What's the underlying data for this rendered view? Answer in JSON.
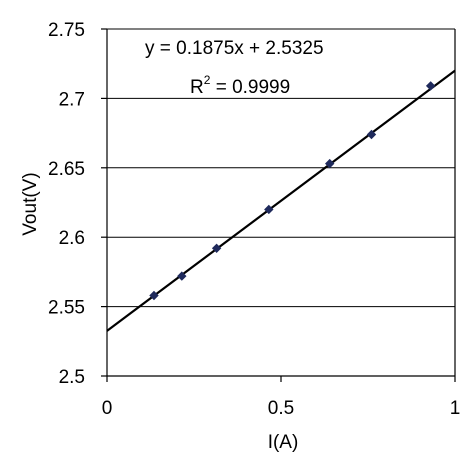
{
  "chart_data": {
    "type": "scatter",
    "title": "",
    "xlabel": "I(A)",
    "ylabel": "Vout(V)",
    "xlim": [
      0,
      1
    ],
    "ylim": [
      2.5,
      2.75
    ],
    "x_ticks": [
      "0",
      "0.5",
      "1"
    ],
    "y_ticks": [
      "2.5",
      "2.55",
      "2.6",
      "2.65",
      "2.7",
      "2.75"
    ],
    "grid": "horizontal",
    "series": [
      {
        "marker": "diamond",
        "color": "#1f2a5c",
        "points": [
          {
            "x": 0.135,
            "y": 2.558
          },
          {
            "x": 0.215,
            "y": 2.572
          },
          {
            "x": 0.315,
            "y": 2.592
          },
          {
            "x": 0.465,
            "y": 2.62
          },
          {
            "x": 0.64,
            "y": 2.653
          },
          {
            "x": 0.76,
            "y": 2.674
          },
          {
            "x": 0.93,
            "y": 2.709
          }
        ]
      }
    ],
    "trendline": {
      "slope": 0.1875,
      "intercept": 2.5325,
      "x_range": [
        0,
        1
      ]
    },
    "annotations": {
      "equation": "y = 0.1875x + 2.5325",
      "r2_prefix": "R",
      "r2_exponent": "2",
      "r2_suffix": " = 0.9999"
    }
  }
}
